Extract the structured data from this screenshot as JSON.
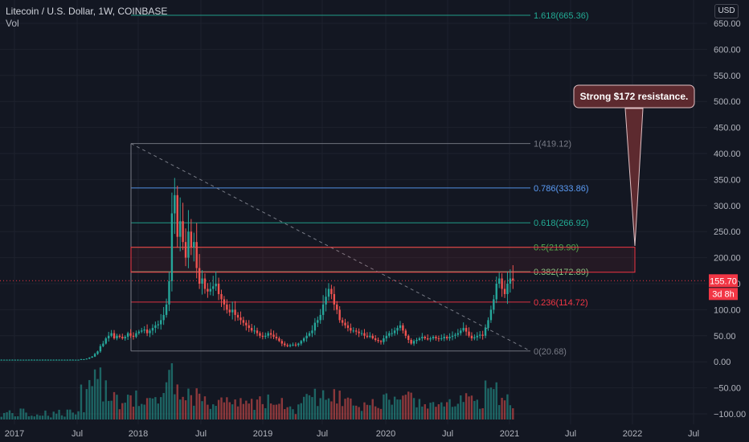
{
  "header": {
    "title": "Litecoin / U.S. Dollar, 1W, COINBASE",
    "indicator": "Vol",
    "currency": "USD"
  },
  "price_tag": {
    "value": "155.70",
    "countdown": "3d 8h",
    "color": "#f23645"
  },
  "annotation": {
    "text": "Strong $172 resistance."
  },
  "colors": {
    "up": "#26a69a",
    "down": "#ef5350",
    "background": "#131722"
  },
  "chart_data": {
    "type": "candlestick",
    "y_ticks": [
      650,
      600,
      550,
      500,
      450,
      400,
      350,
      300,
      250,
      200,
      150,
      100,
      50,
      0,
      -50,
      -100
    ],
    "y_tick_labels": [
      "650.00",
      "600.00",
      "550.00",
      "500.00",
      "450.00",
      "400.00",
      "350.00",
      "300.00",
      "250.00",
      "200.00",
      "150.00",
      "100.00",
      "50.00",
      "0.00",
      "−50.00",
      "−100.00"
    ],
    "x_ticks": [
      "2017",
      "Jul",
      "2018",
      "Jul",
      "2019",
      "Jul",
      "2020",
      "Jul",
      "2021",
      "Jul",
      "2022",
      "Jul"
    ],
    "fib_levels": [
      {
        "label": "1.618(665.36)",
        "value": 665.36,
        "color": "#22ab94"
      },
      {
        "label": "1(419.12)",
        "value": 419.12,
        "color": "#787b86"
      },
      {
        "label": "0.786(333.86)",
        "value": 333.86,
        "color": "#5b9cf6"
      },
      {
        "label": "0.618(266.92)",
        "value": 266.92,
        "color": "#22ab94"
      },
      {
        "label": "0.5(219.90)",
        "value": 219.9,
        "color": "#4caf50"
      },
      {
        "label": "0.382(172.89)",
        "value": 172.89,
        "color": "#81c784"
      },
      {
        "label": "0.236(114.72)",
        "value": 114.72,
        "color": "#f23645"
      },
      {
        "label": "0(20.68)",
        "value": 20.68,
        "color": "#787b86"
      }
    ],
    "resistance_zone": [
      172,
      220
    ],
    "last_price": 155.7,
    "series_close": [
      4,
      4,
      4,
      4,
      4,
      4,
      4,
      4,
      4,
      4,
      4,
      4,
      4,
      4,
      4,
      4,
      4,
      4,
      4,
      4,
      4,
      4,
      4,
      4,
      4,
      4,
      4,
      4,
      4,
      5,
      5,
      6,
      8,
      10,
      15,
      20,
      30,
      35,
      45,
      50,
      55,
      45,
      50,
      48,
      45,
      48,
      55,
      50,
      48,
      55,
      58,
      60,
      62,
      55,
      60,
      65,
      70,
      72,
      80,
      90,
      110,
      155,
      285,
      320,
      240,
      270,
      230,
      200,
      250,
      220,
      230,
      180,
      150,
      160,
      140,
      135,
      140,
      145,
      150,
      130,
      120,
      110,
      100,
      95,
      100,
      90,
      85,
      80,
      75,
      70,
      65,
      60,
      60,
      55,
      50,
      48,
      50,
      55,
      52,
      48,
      45,
      40,
      35,
      32,
      30,
      32,
      33,
      32,
      35,
      40,
      45,
      50,
      55,
      60,
      75,
      80,
      90,
      110,
      125,
      140,
      130,
      110,
      100,
      80,
      75,
      70,
      65,
      60,
      60,
      58,
      55,
      55,
      50,
      48,
      50,
      45,
      42,
      40,
      38,
      45,
      50,
      55,
      55,
      60,
      65,
      70,
      60,
      50,
      42,
      35,
      40,
      42,
      45,
      48,
      45,
      43,
      45,
      48,
      45,
      44,
      45,
      48,
      45,
      48,
      50,
      52,
      55,
      60,
      65,
      58,
      50,
      45,
      47,
      50,
      52,
      50,
      65,
      80,
      100,
      120,
      150,
      160,
      140,
      130,
      150,
      160,
      156
    ],
    "volume_note": "Volume shown as histogram below price"
  }
}
